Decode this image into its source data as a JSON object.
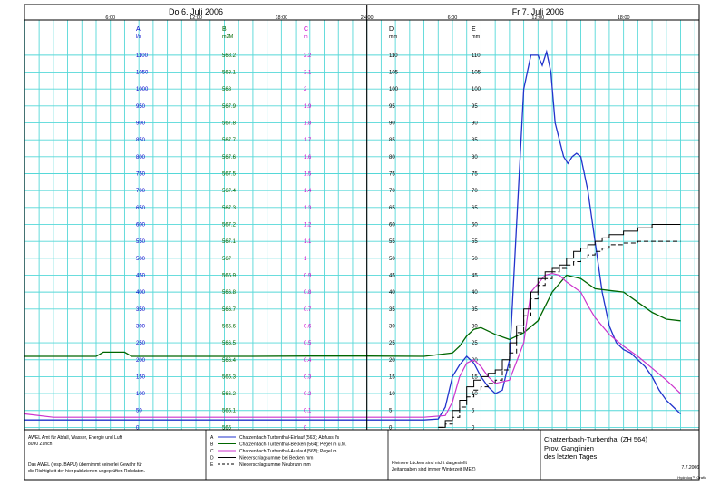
{
  "header": {
    "day1": "Do  6. Juli  2006",
    "day2": "Fr  7. Juli  2006",
    "times": [
      "6:00",
      "12:00",
      "18:00",
      "24:00",
      "6:00",
      "12:00",
      "18:00"
    ]
  },
  "chart_data": {
    "type": "line",
    "title": "Chatzenbach-Turbenthal (ZH 564)",
    "subtitle": "Prov. Ganglinien\ndes letzten Tages",
    "x_unit": "hours since 2006-07-06 00:00",
    "xlim": [
      0,
      48
    ],
    "grid": true,
    "axes": [
      {
        "letter": "A",
        "unit": "l/s",
        "color": "#0000cc",
        "ticks": [
          "0",
          "50",
          "100",
          "150",
          "200",
          "250",
          "300",
          "350",
          "400",
          "450",
          "500",
          "550",
          "600",
          "650",
          "700",
          "750",
          "800",
          "850",
          "900",
          "950",
          "1000",
          "1050",
          "1100"
        ]
      },
      {
        "letter": "B",
        "unit": "m2M",
        "color": "#006600",
        "ticks": [
          "566",
          "566.1",
          "566.2",
          "566.3",
          "566.4",
          "566.5",
          "566.6",
          "566.7",
          "566.8",
          "566.9",
          "567",
          "567.1",
          "567.2",
          "567.3",
          "567.4",
          "567.5",
          "567.6",
          "567.7",
          "567.8",
          "567.9",
          "568",
          "568.1",
          "568.2"
        ]
      },
      {
        "letter": "C",
        "unit": "m",
        "color": "#cc00cc",
        "ticks": [
          "0",
          "0.1",
          "0.2",
          "0.3",
          "0.4",
          "0.5",
          "0.6",
          "0.7",
          "0.8",
          "0.9",
          "1",
          "1.1",
          "1.2",
          "1.3",
          "1.4",
          "1.5",
          "1.6",
          "1.7",
          "1.8",
          "1.9",
          "2",
          "2.1",
          "2.2"
        ]
      },
      {
        "letter": "D",
        "unit": "mm",
        "color": "#000000",
        "ticks": [
          "0",
          "5",
          "10",
          "15",
          "20",
          "25",
          "30",
          "35",
          "40",
          "45",
          "50",
          "55",
          "60",
          "65",
          "70",
          "75",
          "80",
          "85",
          "90",
          "95",
          "100",
          "105",
          "110"
        ]
      },
      {
        "letter": "E",
        "unit": "mm",
        "color": "#000000",
        "ticks": [
          "0",
          "5",
          "10",
          "15",
          "20",
          "25",
          "30",
          "35",
          "40",
          "45",
          "50",
          "55",
          "60",
          "65",
          "70",
          "75",
          "80",
          "85",
          "90",
          "95",
          "100",
          "105",
          "110"
        ]
      }
    ],
    "series": [
      {
        "key": "A",
        "name": "Chatzenbach-Turbenthal-Einlauf (563); Abfluss l/s",
        "color": "#2233cc",
        "width": 1.3,
        "dash": "",
        "x": [
          0,
          4,
          8,
          12,
          16,
          20,
          24,
          26,
          28,
          29,
          29.5,
          30,
          30.5,
          31,
          31.5,
          32,
          32.5,
          33,
          33.5,
          34,
          34.5,
          35,
          35.5,
          36,
          36.3,
          36.6,
          36.9,
          37.2,
          37.5,
          37.8,
          38.1,
          38.4,
          38.7,
          39,
          39.5,
          40,
          40.5,
          41,
          41.5,
          42,
          42.5,
          43,
          43.5,
          44,
          44.5,
          45,
          45.5,
          46
        ],
        "y": [
          22,
          22,
          22,
          22,
          22,
          22,
          22,
          22,
          22,
          25,
          60,
          150,
          185,
          210,
          190,
          150,
          120,
          100,
          110,
          200,
          600,
          1000,
          1100,
          1100,
          1070,
          1110,
          1050,
          900,
          850,
          800,
          780,
          800,
          810,
          800,
          700,
          550,
          400,
          300,
          250,
          230,
          220,
          200,
          180,
          150,
          110,
          80,
          60,
          40
        ]
      },
      {
        "key": "B",
        "name": "Chatzenbach-Turbenthal-Becken (564); Pegel m ü.M.",
        "color": "#006600",
        "width": 1.3,
        "dash": "",
        "x": [
          0,
          5,
          5.5,
          7,
          7.5,
          10,
          16,
          20,
          24,
          28,
          30,
          30.5,
          31,
          31.5,
          32,
          33,
          34,
          35,
          36,
          37,
          38,
          39,
          40,
          41,
          42,
          43,
          44,
          44.5,
          45,
          46
        ],
        "y": [
          566.42,
          566.42,
          566.445,
          566.445,
          566.42,
          566.42,
          566.42,
          566.422,
          566.422,
          566.42,
          566.44,
          566.48,
          566.54,
          566.58,
          566.59,
          566.55,
          566.52,
          566.56,
          566.63,
          566.8,
          566.9,
          566.88,
          566.82,
          566.81,
          566.8,
          566.74,
          566.68,
          566.66,
          566.64,
          566.63
        ]
      },
      {
        "key": "C",
        "name": "Chatzenbach-Turbenthal-Auslauf (565); Pegel m",
        "color": "#cc33cc",
        "width": 1.2,
        "dash": "",
        "x": [
          0,
          2,
          6,
          12,
          18,
          24,
          28,
          29.5,
          30,
          30.5,
          31,
          31.5,
          32,
          32.5,
          33,
          34,
          35,
          35.5,
          36,
          36.5,
          37,
          37.5,
          38,
          38.5,
          39,
          39.5,
          40,
          41,
          42,
          43,
          44,
          45,
          46
        ],
        "y": [
          0.08,
          0.06,
          0.06,
          0.06,
          0.06,
          0.06,
          0.06,
          0.07,
          0.15,
          0.3,
          0.38,
          0.4,
          0.36,
          0.3,
          0.26,
          0.28,
          0.5,
          0.8,
          0.85,
          0.9,
          0.91,
          0.9,
          0.86,
          0.83,
          0.8,
          0.72,
          0.65,
          0.55,
          0.48,
          0.42,
          0.35,
          0.28,
          0.2
        ]
      },
      {
        "key": "D",
        "name": "Niederschlagsumme bei Becken mm",
        "color": "#000000",
        "width": 1.0,
        "dash": "",
        "step": true,
        "x": [
          29,
          29.5,
          30,
          30.5,
          31,
          31.5,
          32,
          32.5,
          33,
          33.5,
          34,
          34.5,
          35,
          35.5,
          36,
          36.5,
          37,
          37.5,
          38,
          38.5,
          39,
          39.5,
          40,
          40.5,
          41,
          42,
          43,
          44,
          45,
          46
        ],
        "y": [
          0,
          2,
          5,
          8,
          12,
          14,
          15,
          16,
          17,
          20,
          25,
          30,
          35,
          40,
          44,
          46,
          47,
          48,
          50,
          52,
          53,
          54,
          55,
          56,
          57,
          58,
          59,
          60,
          60,
          60
        ]
      },
      {
        "key": "E",
        "name": "Niederschlagsumme Neubrunn mm",
        "color": "#000000",
        "width": 1.0,
        "dash": "5,3",
        "step": true,
        "x": [
          29,
          29.5,
          30,
          30.5,
          31,
          31.5,
          32,
          32.5,
          33,
          33.5,
          34,
          34.5,
          35,
          35.5,
          36,
          36.5,
          37,
          37.5,
          38,
          38.5,
          39,
          39.5,
          40,
          40.5,
          41,
          42,
          43,
          44,
          45,
          46
        ],
        "y": [
          0,
          1,
          3,
          6,
          9,
          11,
          12,
          13,
          14,
          17,
          22,
          28,
          33,
          38,
          42,
          44,
          46,
          47,
          48,
          49,
          50,
          51,
          52,
          53,
          54,
          54.5,
          55,
          55,
          55,
          55
        ]
      }
    ]
  },
  "footer": {
    "org": "AWEL  Amt für Abfall, Wasser, Energie und Luft\n8090 Zürich",
    "disclaimer": "Das AWEL (resp. BAPU) übernimmt keinerlei Gewähr für\ndie Richtigkeit der hier publizierten ungeprüften Rohdaten.",
    "note": "Kleinere Lücken sind nicht dargestellt\nZeitangaben sind immer Winterzeit (MEZ)",
    "date": "7.7.2006",
    "credit": "Hydrolog™ Grafik",
    "legend_letters": [
      "A",
      "B",
      "C",
      "D",
      "E"
    ]
  }
}
